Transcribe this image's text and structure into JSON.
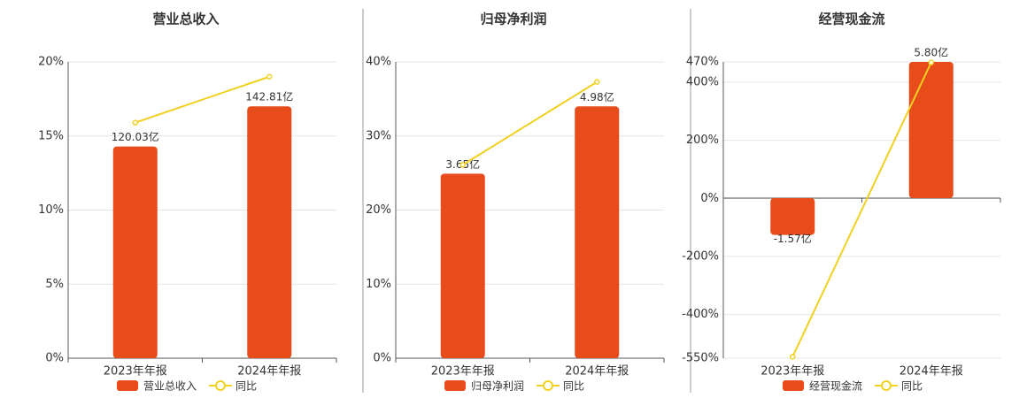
{
  "chart_data": [
    {
      "type": "combo",
      "title": "营业总收入",
      "categories": [
        "2023年年报",
        "2024年年报"
      ],
      "ylim": [
        0,
        20
      ],
      "yticks": [
        {
          "value": 0,
          "label": "0%"
        },
        {
          "value": 5,
          "label": "5%"
        },
        {
          "value": 10,
          "label": "10%"
        },
        {
          "value": 15,
          "label": "15%"
        },
        {
          "value": 20,
          "label": "20%"
        }
      ],
      "y2lim": [
        0,
        168
      ],
      "grid": true,
      "series": [
        {
          "name": "营业总收入",
          "type": "bar",
          "axis": "y2",
          "color": "#e84c1a",
          "values": [
            120.03,
            142.81
          ],
          "value_labels": [
            "120.03亿",
            "142.81亿"
          ]
        },
        {
          "name": "同比",
          "type": "line",
          "color": "#f0d020",
          "values": [
            15.9,
            19.0
          ]
        }
      ]
    },
    {
      "type": "combo",
      "title": "归母净利润",
      "categories": [
        "2023年年报",
        "2024年年报"
      ],
      "ylim": [
        0,
        40
      ],
      "yticks": [
        {
          "value": 0,
          "label": "0%"
        },
        {
          "value": 10,
          "label": "10%"
        },
        {
          "value": 20,
          "label": "20%"
        },
        {
          "value": 30,
          "label": "30%"
        },
        {
          "value": 40,
          "label": "40%"
        }
      ],
      "y2lim": [
        0,
        5.86
      ],
      "grid": true,
      "series": [
        {
          "name": "归母净利润",
          "type": "bar",
          "axis": "y2",
          "color": "#e84c1a",
          "values": [
            3.65,
            4.98
          ],
          "value_labels": [
            "3.65亿",
            "4.98亿"
          ]
        },
        {
          "name": "同比",
          "type": "line",
          "color": "#f0d020",
          "values": [
            26.1,
            37.3
          ]
        }
      ]
    },
    {
      "type": "combo",
      "title": "经营现金流",
      "categories": [
        "2023年年报",
        "2024年年报"
      ],
      "ylim": [
        -550,
        470
      ],
      "yticks": [
        {
          "value": -550,
          "label": "-550%"
        },
        {
          "value": -400,
          "label": "-400%"
        },
        {
          "value": -200,
          "label": "-200%"
        },
        {
          "value": 0,
          "label": "0%"
        },
        {
          "value": 200,
          "label": "200%"
        },
        {
          "value": 400,
          "label": "400%"
        },
        {
          "value": 470,
          "label": "470%"
        }
      ],
      "y2lim": [
        -6.82,
        5.8
      ],
      "grid": true,
      "series": [
        {
          "name": "经营现金流",
          "type": "bar",
          "axis": "y2",
          "color": "#e84c1a",
          "values": [
            -1.57,
            5.8
          ],
          "value_labels": [
            "-1.57亿",
            "5.80亿"
          ]
        },
        {
          "name": "同比",
          "type": "line",
          "color": "#f0d020",
          "values": [
            -545,
            468
          ]
        }
      ]
    }
  ]
}
